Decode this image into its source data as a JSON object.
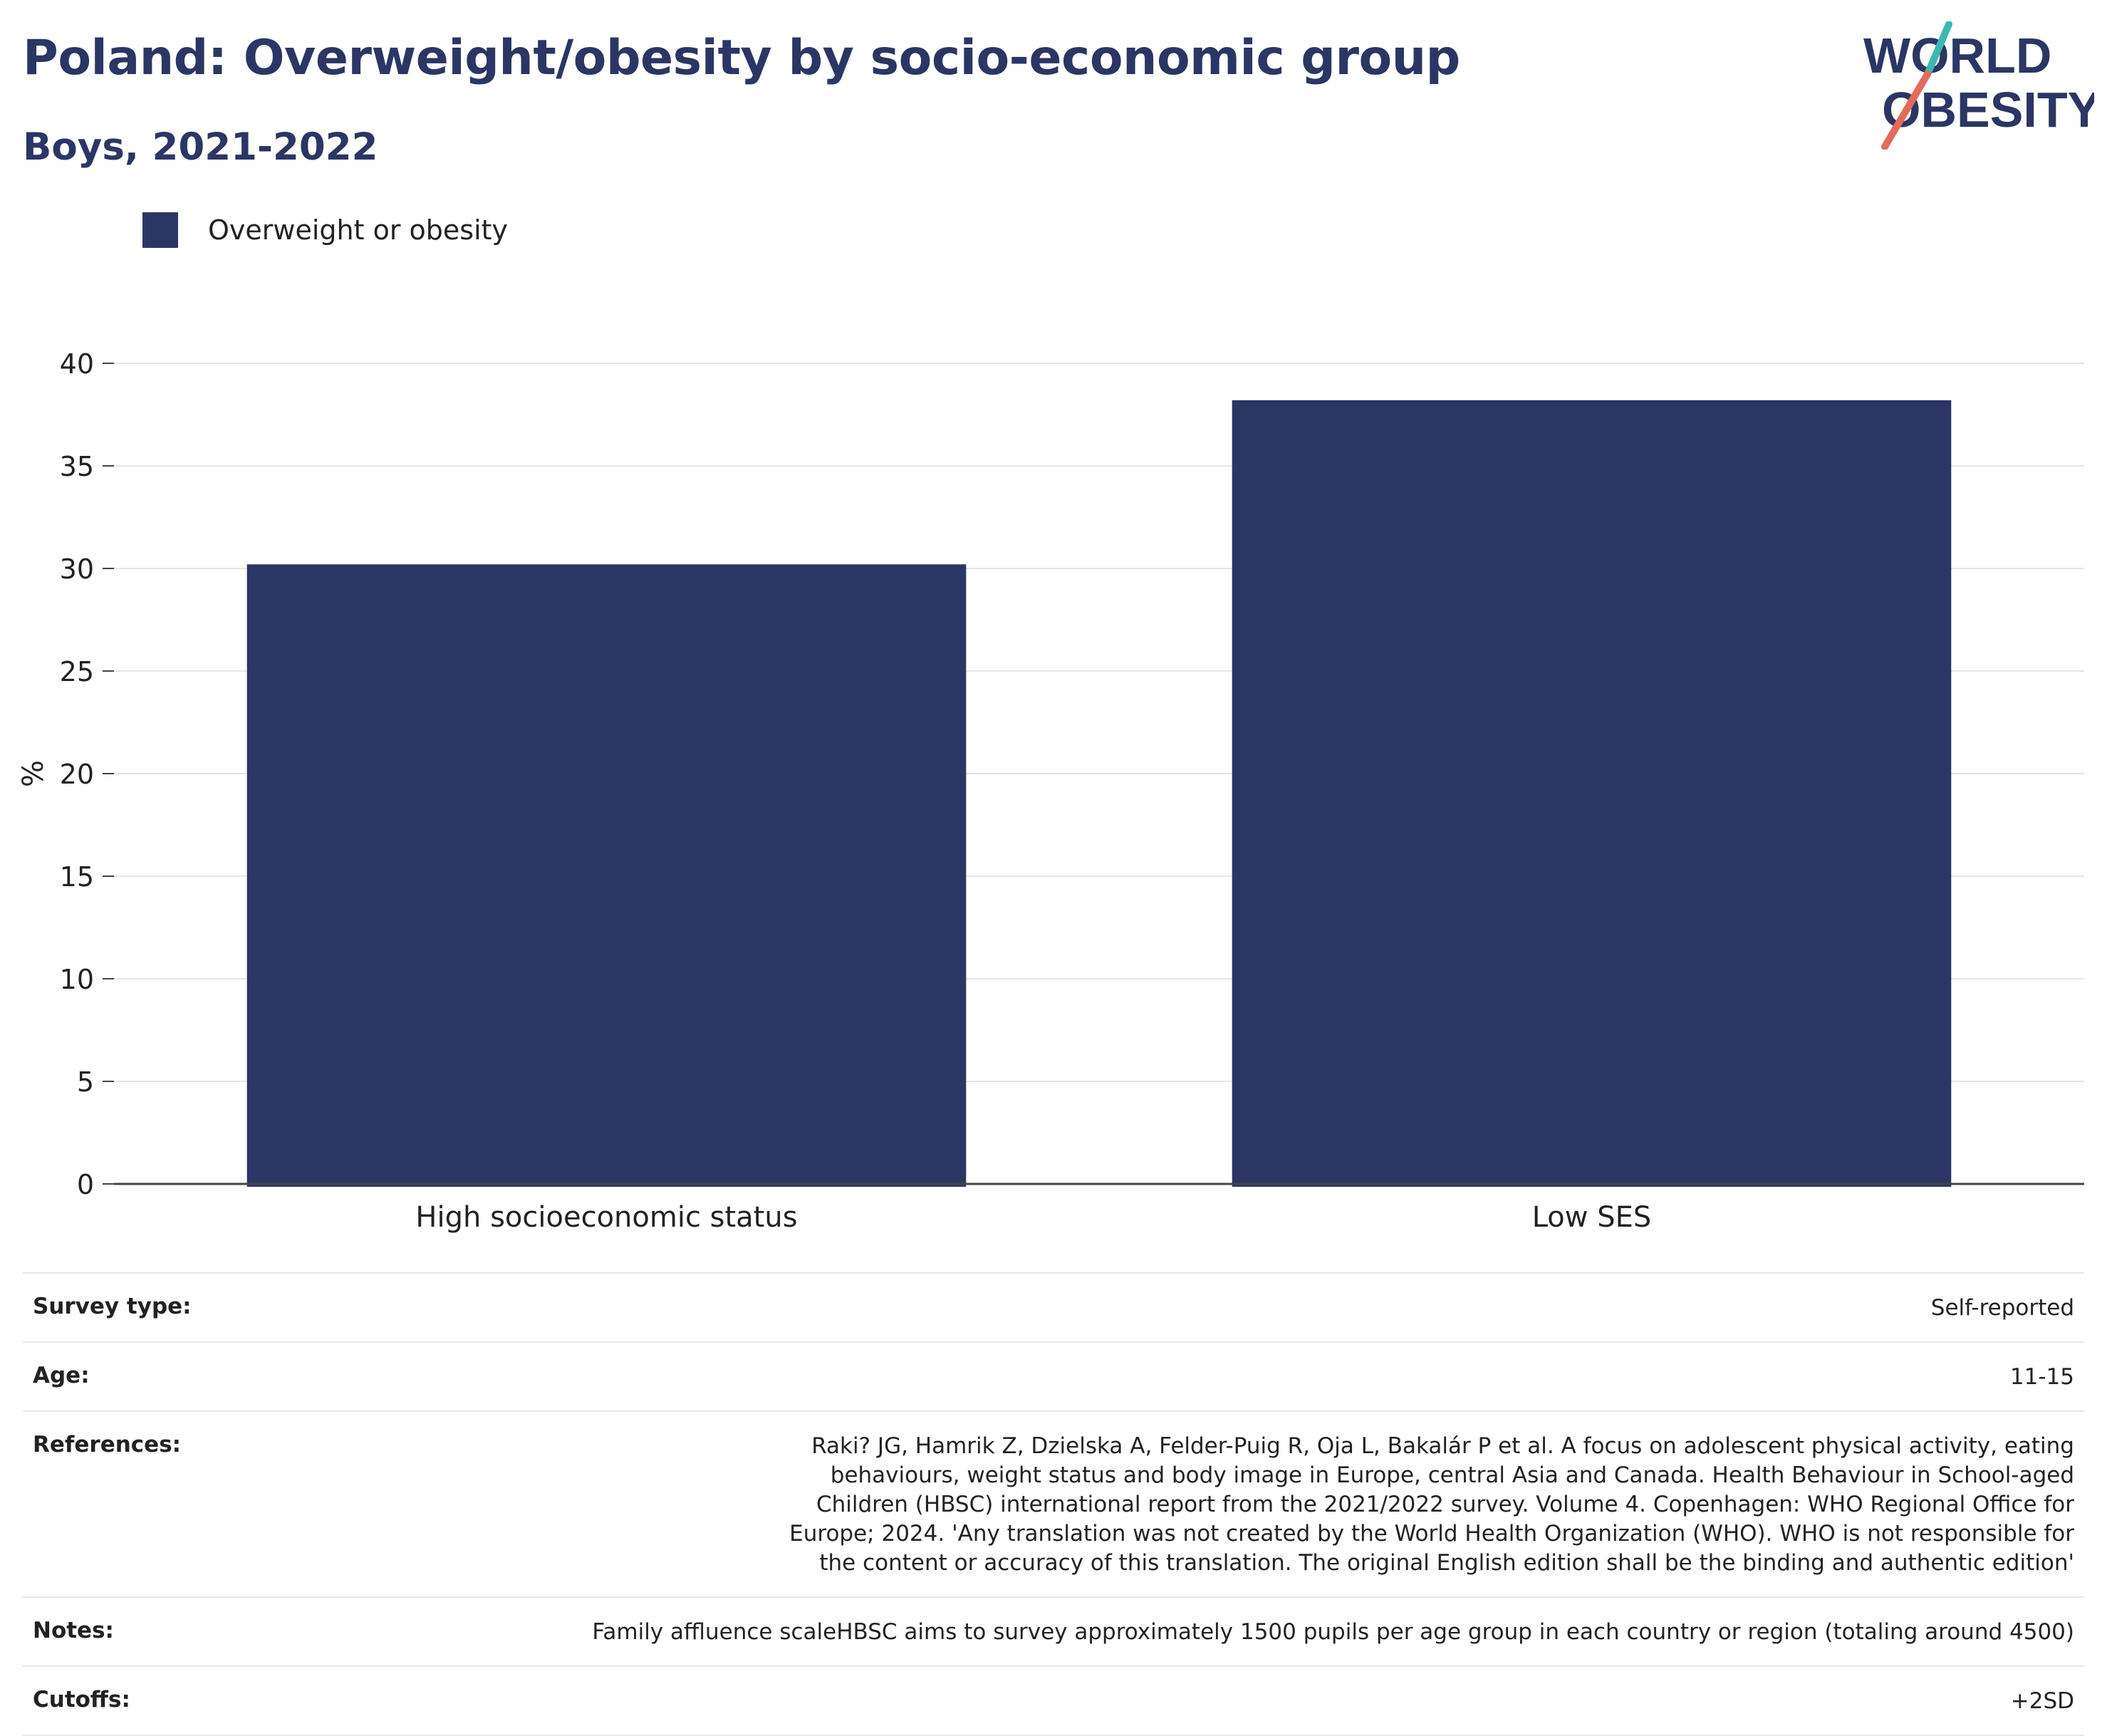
{
  "header": {
    "title": "Poland: Overweight/obesity by socio-economic group",
    "subtitle": "Boys, 2021-2022"
  },
  "logo": {
    "line1": "WORLD",
    "line2": "OBESITY",
    "text_color": "#2b3664",
    "slash_top_color": "#3bb8b0",
    "slash_bottom_color": "#e36b5c"
  },
  "chart_data": {
    "type": "bar",
    "categories": [
      "High socioeconomic status",
      "Low SES"
    ],
    "series": [
      {
        "name": "Overweight or obesity",
        "values": [
          30.2,
          38.2
        ],
        "color": "#2b3664"
      }
    ],
    "ylabel": "%",
    "ylim": [
      0,
      40
    ],
    "yticks": [
      0,
      5,
      10,
      15,
      20,
      25,
      30,
      35,
      40
    ],
    "grid": true,
    "legend_position": "top-left"
  },
  "details": [
    {
      "label": "Survey type:",
      "value": "Self-reported"
    },
    {
      "label": "Age:",
      "value": "11-15"
    },
    {
      "label": "References:",
      "value": "Raki? JG, Hamrik Z, Dzielska A, Felder-Puig R, Oja L, Bakalár P et al. A focus on adolescent physical activity, eating behaviours, weight status and body image in Europe, central Asia and Canada. Health Behaviour in School-aged Children (HBSC) international report from the 2021/2022 survey. Volume 4. Copenhagen: WHO Regional Office for Europe; 2024. 'Any translation was not created by the World Health Organization (WHO). WHO is not responsible for the content or accuracy of this translation. The original English edition shall be the binding and authentic edition'"
    },
    {
      "label": "Notes:",
      "value": "Family affluence scaleHBSC aims to survey approximately 1500 pupils per age group in each country or region (totaling around 4500)"
    },
    {
      "label": "Cutoffs:",
      "value": "+2SD"
    }
  ]
}
